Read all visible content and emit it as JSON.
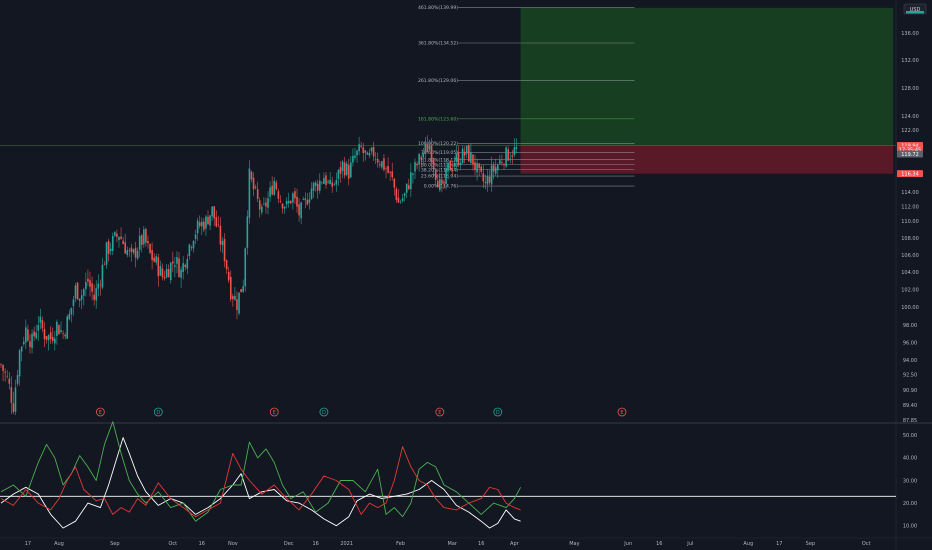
{
  "currency_label": "USD",
  "colors": {
    "background": "#131722",
    "up": "#26a69a",
    "down": "#ef5350",
    "profit_zone": "#1b5e20",
    "loss_zone": "#8b1a2a",
    "osc_white": "#ffffff",
    "osc_green": "#4caf50",
    "osc_red": "#e53935",
    "grid": "#2a2e39"
  },
  "price_tags": [
    {
      "label": "119.94",
      "bg": "#ef5350",
      "fg": "#ffffff",
      "value": 119.94
    },
    {
      "label": "17:35:45",
      "bg": "#ef5350",
      "fg": "#ffffff",
      "value": 119.4
    },
    {
      "label": "119.72",
      "bg": "#5d606b",
      "fg": "#ffffff",
      "value": 118.85
    },
    {
      "label": "116.34",
      "bg": "#ef5350",
      "fg": "#ffffff",
      "value": 116.34
    }
  ],
  "event_markers": [
    {
      "label": "E",
      "type": "earnings",
      "x_index": 48
    },
    {
      "label": "D",
      "type": "dividend",
      "x_index": 76
    },
    {
      "label": "E",
      "type": "earnings",
      "x_index": 132
    },
    {
      "label": "D",
      "type": "dividend",
      "x_index": 156
    },
    {
      "label": "E",
      "type": "earnings",
      "x_index": 212
    },
    {
      "label": "D",
      "type": "dividend",
      "x_index": 240
    },
    {
      "label": "E",
      "type": "earnings",
      "x_index": 300
    }
  ],
  "chart_data": [
    {
      "type": "candlestick",
      "title": "",
      "x_ticks": [
        {
          "label": "17",
          "x_index": 13
        },
        {
          "label": "Aug",
          "x_index": 28
        },
        {
          "label": "Sep",
          "x_index": 55
        },
        {
          "label": "Oct",
          "x_index": 83
        },
        {
          "label": "16",
          "x_index": 97
        },
        {
          "label": "Nov",
          "x_index": 112
        },
        {
          "label": "Dec",
          "x_index": 139
        },
        {
          "label": "16",
          "x_index": 152
        },
        {
          "label": "2021",
          "x_index": 167
        },
        {
          "label": "Feb",
          "x_index": 193
        },
        {
          "label": "Mar",
          "x_index": 218
        },
        {
          "label": "16",
          "x_index": 232
        },
        {
          "label": "Apr",
          "x_index": 248
        },
        {
          "label": "May",
          "x_index": 277
        },
        {
          "label": "Jun",
          "x_index": 303
        },
        {
          "label": "16",
          "x_index": 318
        },
        {
          "label": "Jul",
          "x_index": 333
        },
        {
          "label": "Aug",
          "x_index": 361
        },
        {
          "label": "17",
          "x_index": 376
        },
        {
          "label": "Sep",
          "x_index": 391
        },
        {
          "label": "Oct",
          "x_index": 418
        }
      ],
      "y_ticks": [
        "136.00",
        "132.00",
        "128.00",
        "124.00",
        "122.00",
        "114.00",
        "112.00",
        "110.00",
        "108.00",
        "106.00",
        "104.00",
        "102.00",
        "100.00",
        "98.00",
        "96.00",
        "94.00",
        "92.50",
        "90.90",
        "89.40",
        "87.85"
      ],
      "ylim": [
        87.85,
        140.5
      ],
      "close_path": [
        [
          0,
          93.5
        ],
        [
          3,
          92.0
        ],
        [
          6,
          89.5
        ],
        [
          9,
          95.0
        ],
        [
          12,
          97.5
        ],
        [
          15,
          96.0
        ],
        [
          18,
          98.5
        ],
        [
          21,
          97.0
        ],
        [
          24,
          96.5
        ],
        [
          27,
          98.0
        ],
        [
          30,
          97.0
        ],
        [
          33,
          99.0
        ],
        [
          36,
          102.0
        ],
        [
          39,
          101.5
        ],
        [
          42,
          103.0
        ],
        [
          45,
          101.0
        ],
        [
          48,
          103.5
        ],
        [
          51,
          106.5
        ],
        [
          54,
          107.5
        ],
        [
          57,
          108.5
        ],
        [
          60,
          107.0
        ],
        [
          63,
          105.5
        ],
        [
          66,
          107.0
        ],
        [
          69,
          108.0
        ],
        [
          72,
          106.0
        ],
        [
          75,
          105.0
        ],
        [
          78,
          103.5
        ],
        [
          81,
          104.5
        ],
        [
          84,
          105.5
        ],
        [
          87,
          104.0
        ],
        [
          90,
          106.5
        ],
        [
          93,
          108.5
        ],
        [
          96,
          109.5
        ],
        [
          99,
          110.0
        ],
        [
          102,
          111.5
        ],
        [
          105,
          108.5
        ],
        [
          108,
          106.0
        ],
        [
          111,
          102.0
        ],
        [
          114,
          100.5
        ],
        [
          117,
          103.0
        ],
        [
          120,
          116.0
        ],
        [
          123,
          113.5
        ],
        [
          126,
          111.0
        ],
        [
          129,
          113.0
        ],
        [
          132,
          115.5
        ],
        [
          135,
          113.0
        ],
        [
          138,
          112.0
        ],
        [
          141,
          113.5
        ],
        [
          144,
          111.0
        ],
        [
          147,
          112.5
        ],
        [
          150,
          114.5
        ],
        [
          153,
          115.0
        ],
        [
          156,
          116.0
        ],
        [
          159,
          114.5
        ],
        [
          162,
          115.5
        ],
        [
          165,
          117.5
        ],
        [
          168,
          116.5
        ],
        [
          171,
          118.5
        ],
        [
          174,
          119.5
        ],
        [
          177,
          118.0
        ],
        [
          180,
          119.0
        ],
        [
          183,
          118.0
        ],
        [
          186,
          117.0
        ],
        [
          189,
          115.5
        ],
        [
          192,
          112.5
        ],
        [
          195,
          113.5
        ],
        [
          198,
          116.0
        ],
        [
          201,
          117.5
        ],
        [
          204,
          119.0
        ],
        [
          207,
          120.0
        ],
        [
          210,
          116.5
        ],
        [
          213,
          114.0
        ],
        [
          216,
          117.0
        ],
        [
          219,
          118.0
        ],
        [
          222,
          118.5
        ],
        [
          225,
          119.0
        ],
        [
          228,
          118.0
        ],
        [
          231,
          116.0
        ],
        [
          234,
          115.0
        ],
        [
          237,
          116.5
        ],
        [
          240,
          117.5
        ],
        [
          243,
          118.5
        ],
        [
          246,
          119.0
        ],
        [
          249,
          119.4
        ]
      ],
      "fibonacci": {
        "levels": [
          {
            "label": "461.80%(139.99)",
            "value": 139.99,
            "color": "#b2b5be"
          },
          {
            "label": "361.80%(134.52)",
            "value": 134.52,
            "color": "#b2b5be"
          },
          {
            "label": "261.80%(129.06)",
            "value": 129.06,
            "color": "#b2b5be"
          },
          {
            "label": "161.80%(123.60)",
            "value": 123.6,
            "color": "#4caf50"
          },
          {
            "label": "100.00%(120.22)",
            "value": 120.22,
            "color": "#b2b5be"
          },
          {
            "label": "78.60%(119.05)",
            "value": 119.05,
            "color": "#b2b5be"
          },
          {
            "label": "61.80%(118.12)",
            "value": 118.12,
            "color": "#b2b5be"
          },
          {
            "label": "50.00%(117.48)",
            "value": 117.48,
            "color": "#b2b5be"
          },
          {
            "label": "38.20%(116.84)",
            "value": 116.84,
            "color": "#b2b5be"
          },
          {
            "label": "23.60%(116.04)",
            "value": 116.04,
            "color": "#b2b5be"
          },
          {
            "label": "0.00%(114.76)",
            "value": 114.76,
            "color": "#b2b5be"
          }
        ]
      },
      "position": {
        "type": "long",
        "entry": 119.94,
        "target": 139.9,
        "stop": 116.34,
        "x_start_index": 251,
        "x_end_index": 431
      }
    },
    {
      "type": "line",
      "title": "",
      "y_ticks": [
        "50.00",
        "40.00",
        "30.00",
        "20.00",
        "10.00"
      ],
      "ylim": [
        5,
        55
      ],
      "reference_line": 23,
      "series": [
        {
          "color": "#ffffff",
          "values": [
            [
              0,
              20
            ],
            [
              6,
              24
            ],
            [
              12,
              27
            ],
            [
              18,
              24
            ],
            [
              24,
              15
            ],
            [
              30,
              9
            ],
            [
              36,
              12
            ],
            [
              42,
              20
            ],
            [
              48,
              18
            ],
            [
              52,
              28
            ],
            [
              56,
              40
            ],
            [
              59,
              49
            ],
            [
              62,
              42
            ],
            [
              66,
              32
            ],
            [
              70,
              25
            ],
            [
              76,
              19
            ],
            [
              82,
              22
            ],
            [
              88,
              20
            ],
            [
              94,
              15
            ],
            [
              100,
              18
            ],
            [
              106,
              22
            ],
            [
              112,
              28
            ],
            [
              116,
              33
            ],
            [
              120,
              22
            ],
            [
              126,
              25
            ],
            [
              132,
              26
            ],
            [
              138,
              21
            ],
            [
              144,
              20
            ],
            [
              150,
              17
            ],
            [
              156,
              13
            ],
            [
              162,
              10
            ],
            [
              168,
              14
            ],
            [
              172,
              21
            ],
            [
              178,
              24
            ],
            [
              184,
              22
            ],
            [
              190,
              23
            ],
            [
              196,
              24
            ],
            [
              202,
              26
            ],
            [
              208,
              30
            ],
            [
              214,
              26
            ],
            [
              220,
              19
            ],
            [
              226,
              16
            ],
            [
              232,
              12
            ],
            [
              236,
              9
            ],
            [
              240,
              11
            ],
            [
              244,
              17
            ],
            [
              248,
              13
            ],
            [
              251,
              12
            ]
          ]
        },
        {
          "color": "#4caf50",
          "values": [
            [
              0,
              25
            ],
            [
              6,
              28
            ],
            [
              12,
              23
            ],
            [
              18,
              38
            ],
            [
              22,
              46
            ],
            [
              26,
              40
            ],
            [
              30,
              28
            ],
            [
              34,
              33
            ],
            [
              38,
              41
            ],
            [
              42,
              36
            ],
            [
              46,
              30
            ],
            [
              50,
              46
            ],
            [
              54,
              56
            ],
            [
              58,
              42
            ],
            [
              62,
              30
            ],
            [
              66,
              24
            ],
            [
              70,
              20
            ],
            [
              76,
              25
            ],
            [
              82,
              18
            ],
            [
              88,
              20
            ],
            [
              94,
              12
            ],
            [
              100,
              16
            ],
            [
              106,
              26
            ],
            [
              112,
              28
            ],
            [
              116,
              28
            ],
            [
              120,
              47
            ],
            [
              124,
              40
            ],
            [
              128,
              44
            ],
            [
              132,
              38
            ],
            [
              136,
              28
            ],
            [
              140,
              22
            ],
            [
              146,
              25
            ],
            [
              152,
              16
            ],
            [
              158,
              20
            ],
            [
              164,
              30
            ],
            [
              170,
              30
            ],
            [
              176,
              25
            ],
            [
              182,
              35
            ],
            [
              186,
              15
            ],
            [
              190,
              18
            ],
            [
              194,
              14
            ],
            [
              198,
              20
            ],
            [
              202,
              35
            ],
            [
              206,
              38
            ],
            [
              210,
              36
            ],
            [
              214,
              28
            ],
            [
              220,
              25
            ],
            [
              226,
              20
            ],
            [
              232,
              15
            ],
            [
              238,
              20
            ],
            [
              244,
              18
            ],
            [
              248,
              22
            ],
            [
              251,
              27
            ]
          ]
        },
        {
          "color": "#e53935",
          "values": [
            [
              0,
              22
            ],
            [
              6,
              19
            ],
            [
              12,
              26
            ],
            [
              18,
              20
            ],
            [
              24,
              17
            ],
            [
              28,
              22
            ],
            [
              32,
              30
            ],
            [
              36,
              36
            ],
            [
              40,
              26
            ],
            [
              46,
              21
            ],
            [
              50,
              22
            ],
            [
              54,
              15
            ],
            [
              58,
              18
            ],
            [
              62,
              16
            ],
            [
              66,
              22
            ],
            [
              70,
              19
            ],
            [
              76,
              29
            ],
            [
              82,
              22
            ],
            [
              88,
              18
            ],
            [
              94,
              14
            ],
            [
              100,
              17
            ],
            [
              106,
              20
            ],
            [
              112,
              42
            ],
            [
              116,
              35
            ],
            [
              120,
              30
            ],
            [
              126,
              24
            ],
            [
              132,
              28
            ],
            [
              138,
              22
            ],
            [
              144,
              17
            ],
            [
              150,
              24
            ],
            [
              156,
              32
            ],
            [
              162,
              30
            ],
            [
              168,
              26
            ],
            [
              174,
              15
            ],
            [
              178,
              20
            ],
            [
              182,
              18
            ],
            [
              186,
              20
            ],
            [
              190,
              30
            ],
            [
              194,
              45
            ],
            [
              198,
              36
            ],
            [
              202,
              30
            ],
            [
              206,
              28
            ],
            [
              210,
              22
            ],
            [
              214,
              18
            ],
            [
              220,
              17
            ],
            [
              226,
              20
            ],
            [
              232,
              22
            ],
            [
              236,
              27
            ],
            [
              240,
              26
            ],
            [
              244,
              20
            ],
            [
              248,
              18
            ],
            [
              251,
              17
            ]
          ]
        }
      ]
    }
  ]
}
